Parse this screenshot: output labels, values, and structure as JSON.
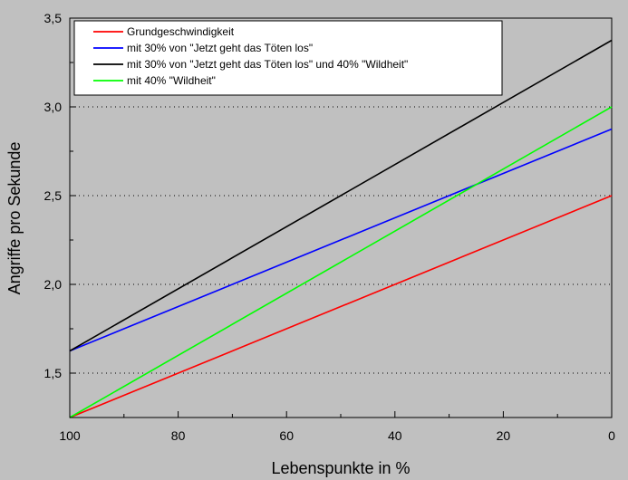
{
  "chart_data": {
    "type": "line",
    "title": "",
    "xlabel": "Lebenspunkte in %",
    "ylabel": "Angriffe pro Sekunde",
    "xlim": [
      100,
      0
    ],
    "ylim": [
      1.25,
      3.5
    ],
    "x_reversed": true,
    "x_ticks": [
      100,
      80,
      60,
      40,
      20,
      0
    ],
    "x_tick_labels": [
      "100",
      "80",
      "60",
      "40",
      "20",
      "0"
    ],
    "y_ticks": [
      1.5,
      2.0,
      2.5,
      3.0,
      3.5
    ],
    "y_tick_labels": [
      "1,5",
      "2,0",
      "2,5",
      "3,0",
      "3,5"
    ],
    "grid": "horizontal dotted",
    "legend_position": "top-left",
    "series": [
      {
        "name": "Grundgeschwindigkeit",
        "color": "#ff0000",
        "x": [
          100,
          0
        ],
        "y": [
          1.25,
          2.5
        ]
      },
      {
        "name": "mit 30% von \"Jetzt geht das Töten los\"",
        "color": "#0000ff",
        "x": [
          100,
          0
        ],
        "y": [
          1.625,
          2.875
        ]
      },
      {
        "name": "mit 30% von \"Jetzt geht das Töten los\" und 40% \"Wildheit\"",
        "color": "#000000",
        "x": [
          100,
          0
        ],
        "y": [
          1.625,
          3.375
        ]
      },
      {
        "name": "mit 40% \"Wildheit\"",
        "color": "#00ff00",
        "x": [
          100,
          0
        ],
        "y": [
          1.25,
          3.0
        ]
      }
    ]
  }
}
